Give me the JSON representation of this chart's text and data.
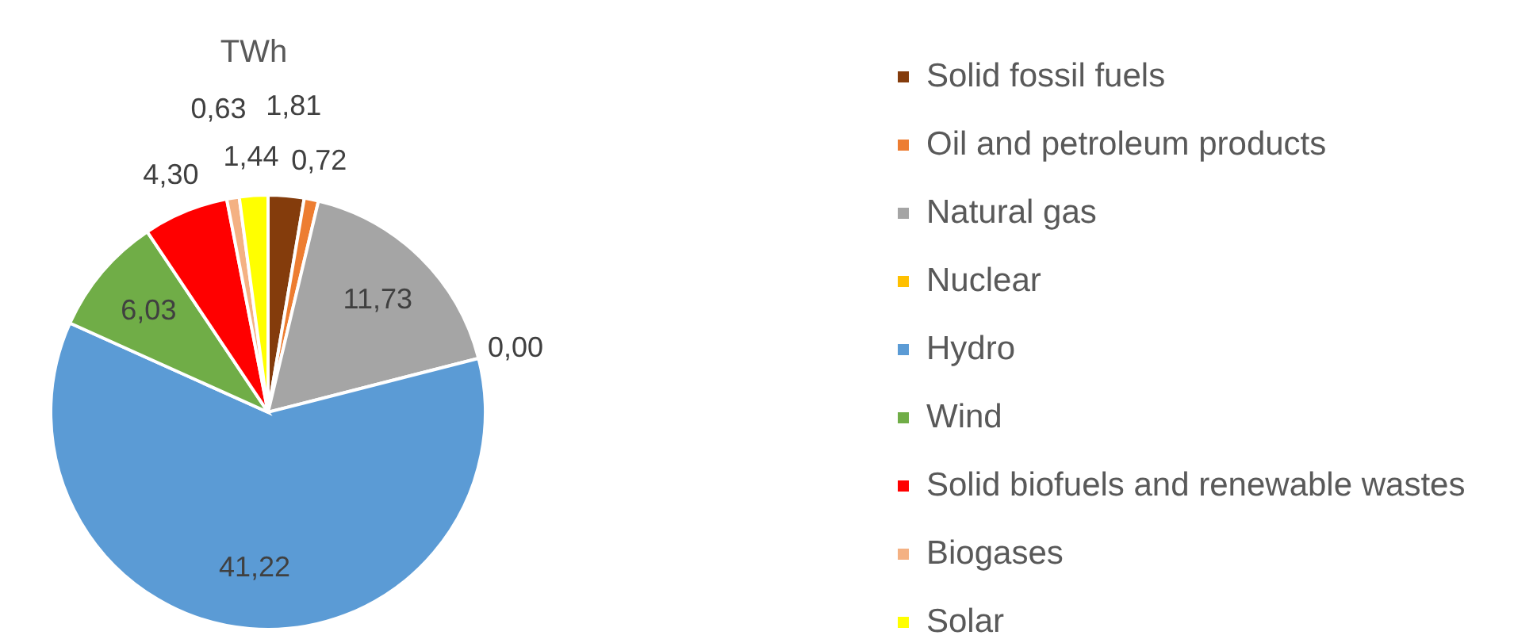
{
  "chart_data": {
    "type": "pie",
    "title": "TWh",
    "categories": [
      "Solid fossil fuels",
      "Oil and petroleum products",
      "Natural gas",
      "Nuclear",
      "Hydro",
      "Wind",
      "Solid biofuels and renewable wastes",
      "Biogases",
      "Solar"
    ],
    "values": [
      1.81,
      0.72,
      11.73,
      0.0,
      41.22,
      6.03,
      4.3,
      0.63,
      1.44
    ],
    "colors": [
      "#843c0c",
      "#ed7d31",
      "#a5a5a5",
      "#ffc000",
      "#5b9bd5",
      "#70ad47",
      "#ff0000",
      "#f4b183",
      "#ffff00"
    ],
    "value_labels": [
      "1,81",
      "0,72",
      "11,73",
      "0,00",
      "41,22",
      "6,03",
      "4,30",
      "0,63",
      "1,44"
    ],
    "legend": "right"
  }
}
